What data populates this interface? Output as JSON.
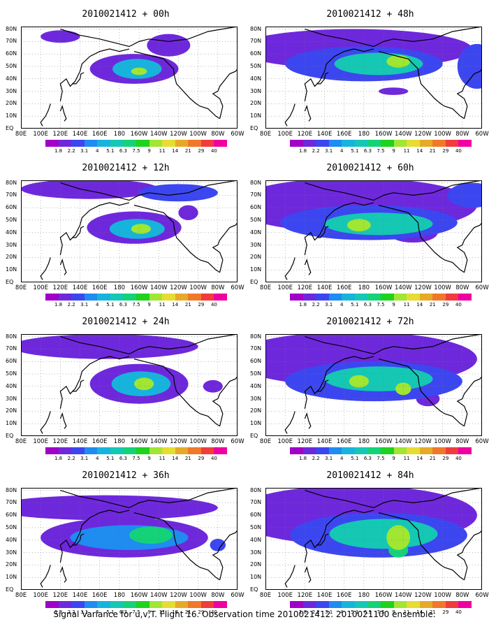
{
  "caption": "Signal Variance for u,v,T. Flight 16. Observation time 2010021412. 2010021100 ensemble.",
  "colorbar": {
    "labels": [
      "1.8",
      "2.2",
      "3.1",
      "4",
      "5.1",
      "6.3",
      "7.5",
      "9",
      "11",
      "14",
      "21",
      "29",
      "40"
    ],
    "colors": [
      "#a000c8",
      "#6e28dc",
      "#3c46f0",
      "#1e8cf0",
      "#16b4dc",
      "#14c8b4",
      "#14d278",
      "#1ed21e",
      "#a0e632",
      "#e6dc32",
      "#e6aa28",
      "#f07828",
      "#f03c3c",
      "#f000a0"
    ]
  },
  "axes": {
    "x_ticks": [
      "80E",
      "100E",
      "120E",
      "140E",
      "160E",
      "180",
      "160W",
      "140W",
      "120W",
      "100W",
      "80W",
      "60W"
    ],
    "y_ticks": [
      "80N",
      "70N",
      "60N",
      "50N",
      "40N",
      "30N",
      "20N",
      "10N",
      "EQ"
    ]
  },
  "chart_data": {
    "type": "heatmap",
    "variable": "Signal Variance for u,v,T",
    "flight": "16",
    "observation_time": "2010021412",
    "ensemble": "2010021100",
    "panels": [
      {
        "title": "2010021412 + 00h",
        "lead_hours": 0,
        "blobs": [
          {
            "lon": 195,
            "lat": 48,
            "rx": 45,
            "ry": 12,
            "v": 2
          },
          {
            "lon": 198,
            "lat": 48,
            "rx": 25,
            "ry": 8,
            "v": 5
          },
          {
            "lon": 200,
            "lat": 46,
            "rx": 8,
            "ry": 3,
            "v": 9
          },
          {
            "lon": 230,
            "lat": 67,
            "rx": 22,
            "ry": 9,
            "v": 2
          },
          {
            "lon": 120,
            "lat": 74,
            "rx": 20,
            "ry": 5,
            "v": 2
          }
        ]
      },
      {
        "title": "2010021412 + 12h",
        "lead_hours": 12,
        "blobs": [
          {
            "lon": 150,
            "lat": 75,
            "rx": 70,
            "ry": 8,
            "v": 2
          },
          {
            "lon": 195,
            "lat": 44,
            "rx": 48,
            "ry": 13,
            "v": 2
          },
          {
            "lon": 198,
            "lat": 43,
            "rx": 28,
            "ry": 8,
            "v": 5
          },
          {
            "lon": 202,
            "lat": 43,
            "rx": 10,
            "ry": 4,
            "v": 9
          },
          {
            "lon": 240,
            "lat": 72,
            "rx": 40,
            "ry": 7,
            "v": 3
          },
          {
            "lon": 250,
            "lat": 56,
            "rx": 10,
            "ry": 6,
            "v": 2
          }
        ]
      },
      {
        "title": "2010021412 + 24h",
        "lead_hours": 24,
        "blobs": [
          {
            "lon": 165,
            "lat": 72,
            "rx": 95,
            "ry": 10,
            "v": 2
          },
          {
            "lon": 200,
            "lat": 42,
            "rx": 50,
            "ry": 16,
            "v": 2
          },
          {
            "lon": 202,
            "lat": 42,
            "rx": 30,
            "ry": 10,
            "v": 5
          },
          {
            "lon": 205,
            "lat": 42,
            "rx": 10,
            "ry": 5,
            "v": 9
          },
          {
            "lon": 275,
            "lat": 40,
            "rx": 10,
            "ry": 5,
            "v": 2
          }
        ]
      },
      {
        "title": "2010021412 + 36h",
        "lead_hours": 36,
        "blobs": [
          {
            "lon": 165,
            "lat": 66,
            "rx": 115,
            "ry": 10,
            "v": 2
          },
          {
            "lon": 185,
            "lat": 42,
            "rx": 85,
            "ry": 16,
            "v": 2
          },
          {
            "lon": 190,
            "lat": 42,
            "rx": 60,
            "ry": 10,
            "v": 4
          },
          {
            "lon": 212,
            "lat": 44,
            "rx": 22,
            "ry": 7,
            "v": 7
          },
          {
            "lon": 280,
            "lat": 36,
            "rx": 8,
            "ry": 5,
            "v": 3
          }
        ]
      },
      {
        "title": "2010021412 + 48h",
        "lead_hours": 48,
        "blobs": [
          {
            "lon": 170,
            "lat": 64,
            "rx": 120,
            "ry": 16,
            "v": 2
          },
          {
            "lon": 180,
            "lat": 52,
            "rx": 80,
            "ry": 14,
            "v": 3
          },
          {
            "lon": 195,
            "lat": 52,
            "rx": 45,
            "ry": 9,
            "v": 6
          },
          {
            "lon": 215,
            "lat": 54,
            "rx": 12,
            "ry": 5,
            "v": 9
          },
          {
            "lon": 295,
            "lat": 50,
            "rx": 20,
            "ry": 18,
            "v": 3
          },
          {
            "lon": 210,
            "lat": 30,
            "rx": 15,
            "ry": 3,
            "v": 2
          }
        ]
      },
      {
        "title": "2010021412 + 60h",
        "lead_hours": 60,
        "blobs": [
          {
            "lon": 170,
            "lat": 62,
            "rx": 125,
            "ry": 22,
            "v": 2
          },
          {
            "lon": 185,
            "lat": 48,
            "rx": 90,
            "ry": 14,
            "v": 3
          },
          {
            "lon": 195,
            "lat": 47,
            "rx": 55,
            "ry": 9,
            "v": 6
          },
          {
            "lon": 175,
            "lat": 46,
            "rx": 12,
            "ry": 5,
            "v": 9
          },
          {
            "lon": 230,
            "lat": 40,
            "rx": 25,
            "ry": 8,
            "v": 2
          },
          {
            "lon": 290,
            "lat": 70,
            "rx": 25,
            "ry": 10,
            "v": 3
          }
        ]
      },
      {
        "title": "2010021412 + 72h",
        "lead_hours": 72,
        "blobs": [
          {
            "lon": 170,
            "lat": 62,
            "rx": 125,
            "ry": 22,
            "v": 2
          },
          {
            "lon": 190,
            "lat": 44,
            "rx": 90,
            "ry": 16,
            "v": 3
          },
          {
            "lon": 195,
            "lat": 46,
            "rx": 55,
            "ry": 10,
            "v": 6
          },
          {
            "lon": 175,
            "lat": 44,
            "rx": 10,
            "ry": 5,
            "v": 9
          },
          {
            "lon": 220,
            "lat": 38,
            "rx": 8,
            "ry": 5,
            "v": 9
          },
          {
            "lon": 245,
            "lat": 30,
            "rx": 12,
            "ry": 6,
            "v": 2
          }
        ]
      },
      {
        "title": "2010021412 + 84h",
        "lead_hours": 84,
        "blobs": [
          {
            "lon": 170,
            "lat": 60,
            "rx": 125,
            "ry": 24,
            "v": 2
          },
          {
            "lon": 195,
            "lat": 44,
            "rx": 90,
            "ry": 18,
            "v": 3
          },
          {
            "lon": 200,
            "lat": 45,
            "rx": 55,
            "ry": 12,
            "v": 6
          },
          {
            "lon": 215,
            "lat": 42,
            "rx": 12,
            "ry": 10,
            "v": 9
          },
          {
            "lon": 215,
            "lat": 32,
            "rx": 10,
            "ry": 6,
            "v": 7
          }
        ]
      }
    ]
  }
}
